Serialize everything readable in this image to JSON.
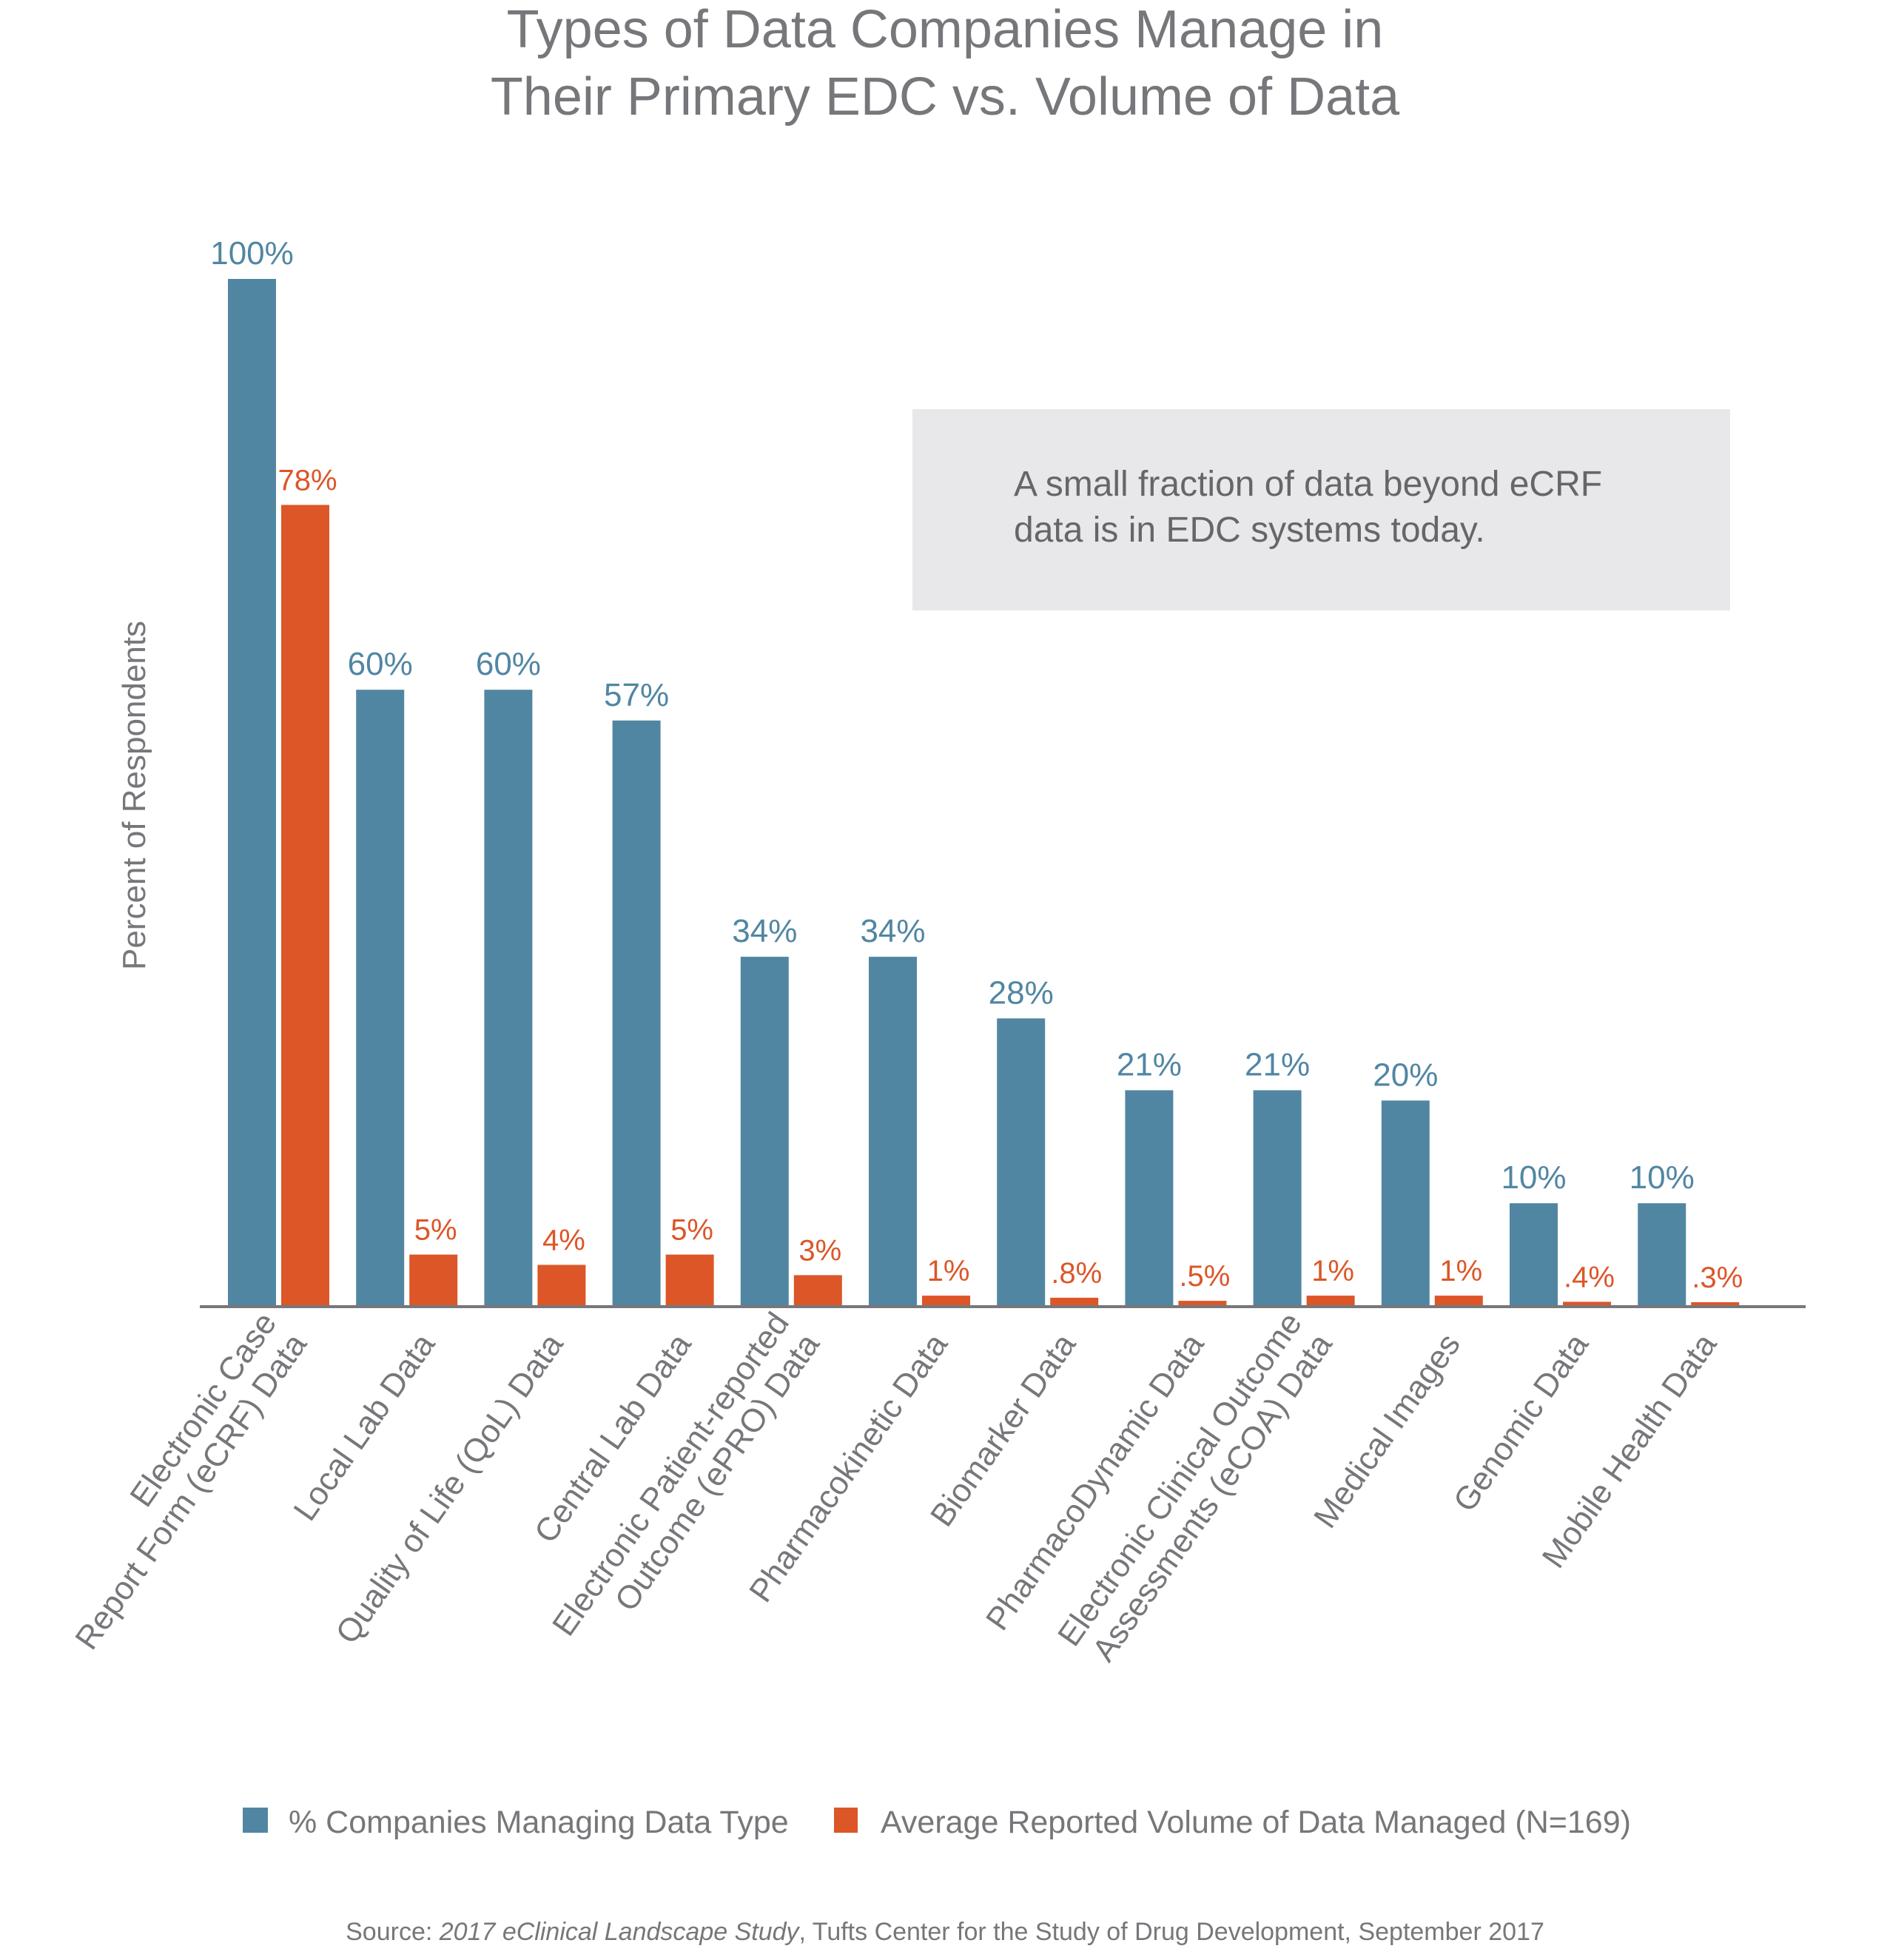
{
  "chart_data": {
    "type": "bar",
    "title": [
      "Types of Data Companies Manage in",
      "Their Primary EDC vs. Volume of Data"
    ],
    "xlabel": "",
    "ylabel": "Percent of Respondents",
    "ylim": [
      0,
      100
    ],
    "grid": false,
    "legend_position": "bottom",
    "categories": [
      [
        "Electronic Case",
        "Report Form (eCRF) Data"
      ],
      [
        "Local Lab Data"
      ],
      [
        "Quality of Life (QoL) Data"
      ],
      [
        "Central Lab Data"
      ],
      [
        "Electronic Patient-reported",
        "Outcome (ePRO) Data"
      ],
      [
        "Pharmacokinetic Data"
      ],
      [
        "Biomarker Data"
      ],
      [
        "PharmacoDynamic Data"
      ],
      [
        "Electronic Clinical Outcome",
        "Assessments (eCOA) Data"
      ],
      [
        "Medical Images"
      ],
      [
        "Genomic Data"
      ],
      [
        "Mobile Health Data"
      ]
    ],
    "series": [
      {
        "name": "% Companies Managing Data Type",
        "color": "#5186a2",
        "values": [
          100,
          60,
          60,
          57,
          34,
          34,
          28,
          21,
          21,
          20,
          10,
          10
        ],
        "labels": [
          "100%",
          "60%",
          "60%",
          "57%",
          "34%",
          "34%",
          "28%",
          "21%",
          "21%",
          "20%",
          "10%",
          "10%"
        ]
      },
      {
        "name": "Average Reported Volume of Data Managed (N=169)",
        "color": "#dc5628",
        "values": [
          78,
          5,
          4,
          5,
          3,
          1,
          0.8,
          0.5,
          1,
          1,
          0.4,
          0.3
        ],
        "labels": [
          "78%",
          "5%",
          "4%",
          "5%",
          "3%",
          "1%",
          ".8%",
          ".5%",
          "1%",
          "1%",
          ".4%",
          ".3%"
        ]
      }
    ],
    "annotation": [
      "A small fraction of data beyond eCRF",
      "data is in EDC systems today."
    ],
    "source": {
      "prefix": "Source: ",
      "italic": "2017 eClinical Landscape Study",
      "suffix": ", Tufts Center for the Study of Drug Development, September 2017"
    }
  },
  "colors": {
    "text": "#77777b",
    "axis": "#77777b",
    "annotation_bg": "#e8e8eb"
  }
}
